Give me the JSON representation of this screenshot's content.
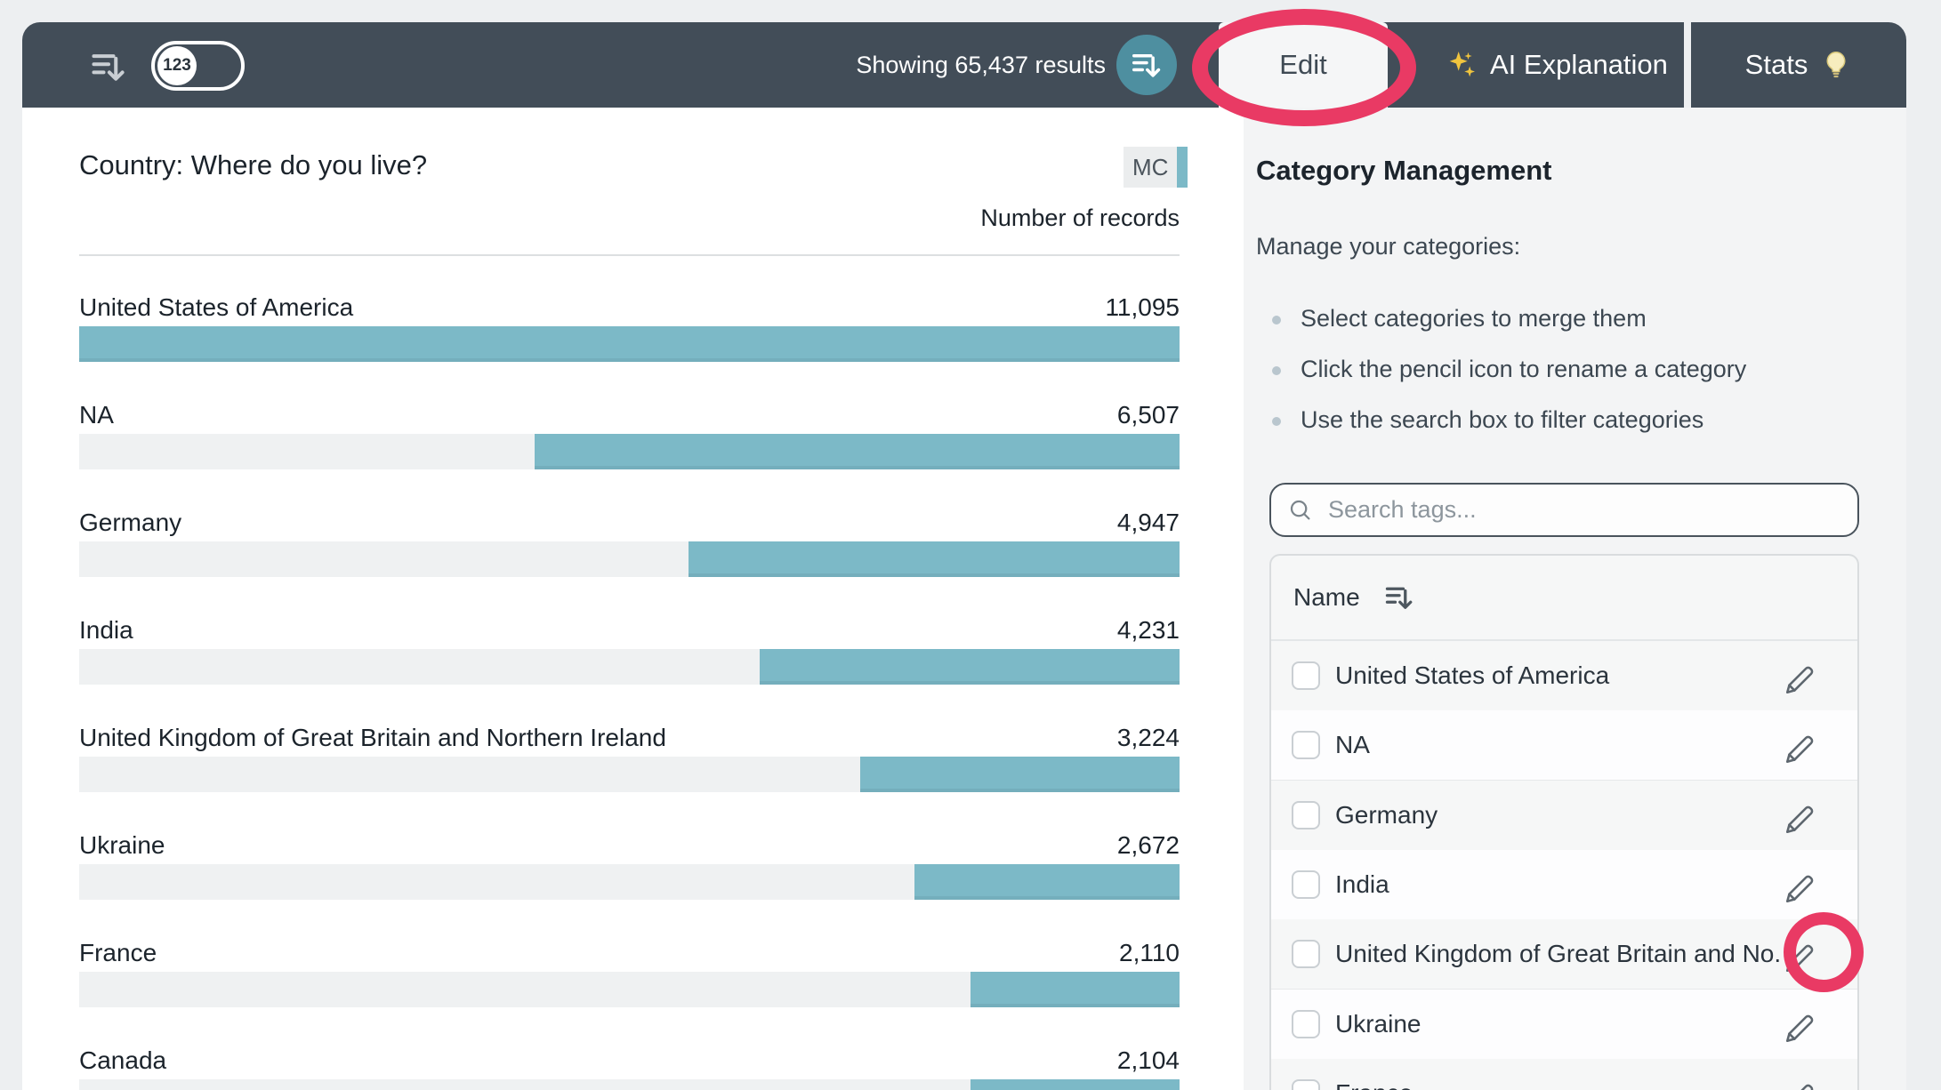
{
  "toolbar": {
    "numeric_toggle_label": "123",
    "results_text": "Showing 65,437 results",
    "edit_label": "Edit",
    "ai_explanation_label": "AI Explanation",
    "stats_label": "Stats"
  },
  "chart": {
    "title": "Country: Where do you live?",
    "type_badge": "MC",
    "value_column_header": "Number of records"
  },
  "chart_data": {
    "type": "bar",
    "orientation": "horizontal",
    "title": "Country: Where do you live?",
    "value_column_label": "Number of records",
    "categories": [
      "United States of America",
      "NA",
      "Germany",
      "India",
      "United Kingdom of Great Britain and Northern Ireland",
      "Ukraine",
      "France",
      "Canada"
    ],
    "values": [
      11095,
      6507,
      4947,
      4231,
      3224,
      2672,
      2110,
      2104
    ],
    "values_formatted": [
      "11,095",
      "6,507",
      "4,947",
      "4,231",
      "3,224",
      "2,672",
      "2,110",
      "2,104"
    ],
    "max_value": 11095,
    "bar_color": "#7cb9c7",
    "track_color": "#eff1f2"
  },
  "side_panel": {
    "title": "Category Management",
    "subtitle": "Manage your categories:",
    "instructions": [
      "Select categories to merge them",
      "Click the pencil icon to rename a category",
      "Use the search box to filter categories"
    ],
    "search_placeholder": "Search tags...",
    "table": {
      "name_header": "Name",
      "rows": [
        "United States of America",
        "NA",
        "Germany",
        "India",
        "United Kingdom of Great Britain and No...",
        "Ukraine",
        "France"
      ]
    }
  },
  "annotations": {
    "highlight_color": "#e93a64"
  },
  "colors": {
    "toolbar_bg": "#424d58",
    "accent_teal_button": "#4e8fa0",
    "bar_teal": "#7cb9c7",
    "panel_bg": "#f3f4f5"
  }
}
